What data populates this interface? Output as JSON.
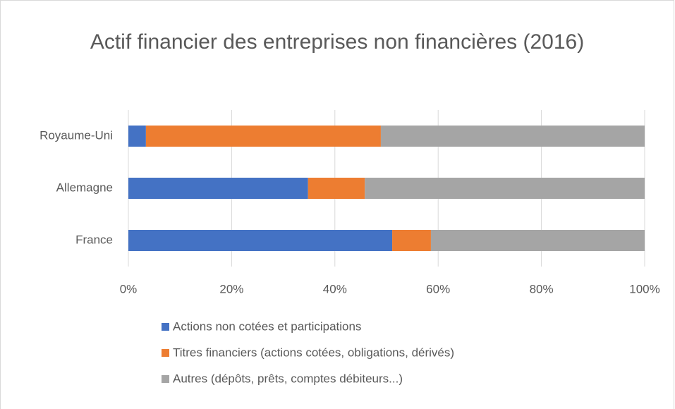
{
  "chart_data": {
    "type": "stacked_barh",
    "title": "Actif financier des entreprises non financières (2016)",
    "categories": [
      "France",
      "Allemagne",
      "Royaume-Uni"
    ],
    "series": [
      {
        "name": "Actions non cotées et participations",
        "color": "#4472c4",
        "values": [
          51.1,
          34.8,
          3.4
        ]
      },
      {
        "name": "Titres financiers (actions cotées, obligations, dérivés)",
        "color": "#ed7d31",
        "values": [
          7.5,
          11.0,
          45.5
        ]
      },
      {
        "name": "Autres (dépôts, prêts, comptes débiteurs...)",
        "color": "#a5a5a5",
        "values": [
          41.4,
          54.2,
          51.1
        ]
      }
    ],
    "xlim": [
      0,
      100
    ],
    "xticks": [
      {
        "value": 0,
        "label": "0%"
      },
      {
        "value": 20,
        "label": "20%"
      },
      {
        "value": 40,
        "label": "40%"
      },
      {
        "value": 60,
        "label": "60%"
      },
      {
        "value": 80,
        "label": "80%"
      },
      {
        "value": 100,
        "label": "100%"
      }
    ],
    "grid": true
  }
}
